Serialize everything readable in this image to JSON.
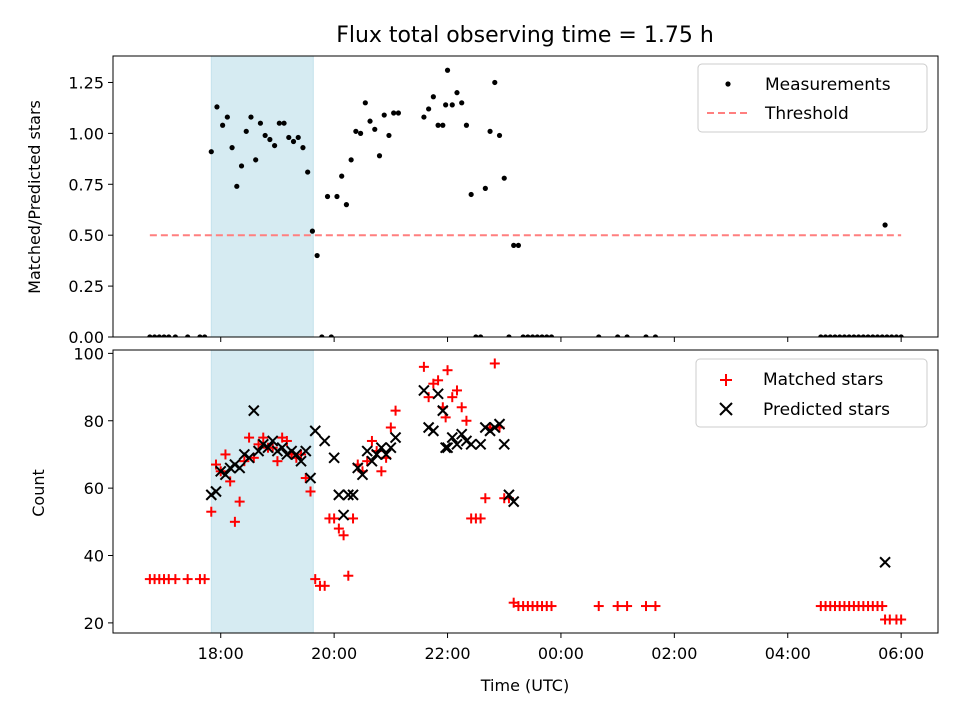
{
  "chart_data": [
    {
      "type": "scatter",
      "title": "Flux total observing time = 1.75 h",
      "xlabel": "",
      "ylabel": "Matched/Predicted stars",
      "xlim": [
        "16:06",
        "06:39"
      ],
      "ylim": [
        0,
        1.38
      ],
      "yticks": [
        "0.00",
        "0.25",
        "0.50",
        "0.75",
        "1.00",
        "1.25"
      ],
      "grid": false,
      "legend_position": "top-right",
      "shaded_span": [
        "17:50",
        "19:38"
      ],
      "threshold": {
        "name": "Threshold",
        "value": 0.5,
        "x_range": [
          "16:45",
          "06:00"
        ],
        "color": "#ff7f7f"
      },
      "series": [
        {
          "name": "Measurements",
          "color": "#000000",
          "points": [
            [
              "16:45",
              0
            ],
            [
              "16:50",
              0
            ],
            [
              "16:55",
              0
            ],
            [
              "17:00",
              0
            ],
            [
              "17:05",
              0
            ],
            [
              "17:12",
              0
            ],
            [
              "17:25",
              0
            ],
            [
              "17:38",
              0
            ],
            [
              "17:43",
              0
            ],
            [
              "17:50",
              0.91
            ],
            [
              "17:56",
              1.13
            ],
            [
              "18:02",
              1.04
            ],
            [
              "18:07",
              1.08
            ],
            [
              "18:12",
              0.93
            ],
            [
              "18:17",
              0.74
            ],
            [
              "18:22",
              0.84
            ],
            [
              "18:27",
              1.01
            ],
            [
              "18:32",
              1.08
            ],
            [
              "18:37",
              0.87
            ],
            [
              "18:42",
              1.05
            ],
            [
              "18:47",
              0.99
            ],
            [
              "18:52",
              0.97
            ],
            [
              "18:57",
              0.94
            ],
            [
              "19:02",
              1.05
            ],
            [
              "19:07",
              1.05
            ],
            [
              "19:12",
              0.98
            ],
            [
              "19:17",
              0.96
            ],
            [
              "19:22",
              0.98
            ],
            [
              "19:27",
              0.93
            ],
            [
              "19:32",
              0.81
            ],
            [
              "19:37",
              0.52
            ],
            [
              "19:42",
              0.4
            ],
            [
              "19:47",
              0
            ],
            [
              "19:57",
              0
            ],
            [
              "19:53",
              0.69
            ],
            [
              "20:03",
              0.69
            ],
            [
              "20:08",
              0.79
            ],
            [
              "20:13",
              0.65
            ],
            [
              "20:18",
              0.87
            ],
            [
              "20:23",
              1.01
            ],
            [
              "20:28",
              1.0
            ],
            [
              "20:33",
              1.15
            ],
            [
              "20:38",
              1.06
            ],
            [
              "20:43",
              1.02
            ],
            [
              "20:48",
              0.89
            ],
            [
              "20:53",
              1.09
            ],
            [
              "20:58",
              0.99
            ],
            [
              "21:03",
              1.1
            ],
            [
              "21:08",
              1.1
            ],
            [
              "21:35",
              1.08
            ],
            [
              "21:40",
              1.12
            ],
            [
              "21:45",
              1.18
            ],
            [
              "21:50",
              1.04
            ],
            [
              "21:55",
              1.04
            ],
            [
              "21:58",
              1.14
            ],
            [
              "22:00",
              1.31
            ],
            [
              "22:05",
              1.14
            ],
            [
              "22:10",
              1.2
            ],
            [
              "22:15",
              1.15
            ],
            [
              "22:20",
              1.04
            ],
            [
              "22:25",
              0.7
            ],
            [
              "22:30",
              0
            ],
            [
              "22:35",
              0
            ],
            [
              "22:40",
              0.73
            ],
            [
              "22:45",
              1.01
            ],
            [
              "22:50",
              1.25
            ],
            [
              "22:55",
              0.99
            ],
            [
              "23:00",
              0.78
            ],
            [
              "23:05",
              0
            ],
            [
              "23:10",
              0.45
            ],
            [
              "23:15",
              0.45
            ],
            [
              "23:20",
              0
            ],
            [
              "23:25",
              0
            ],
            [
              "23:30",
              0
            ],
            [
              "23:35",
              0
            ],
            [
              "23:40",
              0
            ],
            [
              "23:45",
              0
            ],
            [
              "23:50",
              0
            ],
            [
              "00:40",
              0
            ],
            [
              "01:00",
              0
            ],
            [
              "01:10",
              0
            ],
            [
              "01:30",
              0
            ],
            [
              "01:40",
              0
            ],
            [
              "04:35",
              0
            ],
            [
              "04:40",
              0
            ],
            [
              "04:45",
              0
            ],
            [
              "04:50",
              0
            ],
            [
              "04:55",
              0
            ],
            [
              "05:00",
              0
            ],
            [
              "05:05",
              0
            ],
            [
              "05:10",
              0
            ],
            [
              "05:15",
              0
            ],
            [
              "05:20",
              0
            ],
            [
              "05:25",
              0
            ],
            [
              "05:30",
              0
            ],
            [
              "05:35",
              0
            ],
            [
              "05:40",
              0
            ],
            [
              "05:43",
              0.55
            ],
            [
              "05:45",
              0
            ],
            [
              "05:50",
              0
            ],
            [
              "05:55",
              0
            ],
            [
              "06:00",
              0
            ]
          ]
        }
      ]
    },
    {
      "type": "scatter",
      "title": "",
      "xlabel": "Time (UTC)",
      "ylabel": "Count",
      "xlim": [
        "16:06",
        "06:39"
      ],
      "ylim": [
        17,
        101
      ],
      "yticks": [
        "20",
        "40",
        "60",
        "80",
        "100"
      ],
      "xticks": [
        "18:00",
        "20:00",
        "22:00",
        "00:00",
        "02:00",
        "04:00",
        "06:00"
      ],
      "grid": false,
      "legend_position": "top-right",
      "shaded_span": [
        "17:50",
        "19:38"
      ],
      "series": [
        {
          "name": "Matched stars",
          "marker": "plus",
          "color": "#ff0000",
          "points": [
            [
              "16:45",
              33
            ],
            [
              "16:50",
              33
            ],
            [
              "16:55",
              33
            ],
            [
              "17:00",
              33
            ],
            [
              "17:05",
              33
            ],
            [
              "17:12",
              33
            ],
            [
              "17:25",
              33
            ],
            [
              "17:38",
              33
            ],
            [
              "17:43",
              33
            ],
            [
              "17:50",
              53
            ],
            [
              "17:55",
              67
            ],
            [
              "18:00",
              65
            ],
            [
              "18:05",
              70
            ],
            [
              "18:10",
              62
            ],
            [
              "18:15",
              50
            ],
            [
              "18:20",
              56
            ],
            [
              "18:25",
              68
            ],
            [
              "18:30",
              75
            ],
            [
              "18:35",
              69
            ],
            [
              "18:40",
              73
            ],
            [
              "18:45",
              75
            ],
            [
              "18:50",
              72
            ],
            [
              "18:55",
              72
            ],
            [
              "19:00",
              68
            ],
            [
              "19:05",
              75
            ],
            [
              "19:10",
              74
            ],
            [
              "19:15",
              70
            ],
            [
              "19:20",
              69
            ],
            [
              "19:25",
              70
            ],
            [
              "19:30",
              63
            ],
            [
              "19:35",
              59
            ],
            [
              "19:40",
              33
            ],
            [
              "19:45",
              31
            ],
            [
              "19:50",
              31
            ],
            [
              "19:55",
              51
            ],
            [
              "20:00",
              51
            ],
            [
              "20:05",
              48
            ],
            [
              "20:10",
              46
            ],
            [
              "20:15",
              34
            ],
            [
              "20:20",
              51
            ],
            [
              "20:25",
              67
            ],
            [
              "20:30",
              65
            ],
            [
              "20:35",
              68
            ],
            [
              "20:40",
              74
            ],
            [
              "20:45",
              71
            ],
            [
              "20:50",
              65
            ],
            [
              "20:55",
              69
            ],
            [
              "21:00",
              78
            ],
            [
              "21:05",
              83
            ],
            [
              "21:35",
              96
            ],
            [
              "21:40",
              87
            ],
            [
              "21:45",
              91
            ],
            [
              "21:50",
              92
            ],
            [
              "21:55",
              84
            ],
            [
              "21:58",
              81
            ],
            [
              "22:00",
              95
            ],
            [
              "22:05",
              87
            ],
            [
              "22:10",
              89
            ],
            [
              "22:15",
              84
            ],
            [
              "22:20",
              80
            ],
            [
              "22:25",
              51
            ],
            [
              "22:30",
              51
            ],
            [
              "22:35",
              51
            ],
            [
              "22:40",
              57
            ],
            [
              "22:45",
              78
            ],
            [
              "22:50",
              97
            ],
            [
              "22:55",
              78
            ],
            [
              "23:00",
              57
            ],
            [
              "23:05",
              57
            ],
            [
              "23:10",
              26
            ],
            [
              "23:15",
              25
            ],
            [
              "23:20",
              25
            ],
            [
              "23:25",
              25
            ],
            [
              "23:30",
              25
            ],
            [
              "23:35",
              25
            ],
            [
              "23:40",
              25
            ],
            [
              "23:45",
              25
            ],
            [
              "23:50",
              25
            ],
            [
              "00:40",
              25
            ],
            [
              "01:00",
              25
            ],
            [
              "01:10",
              25
            ],
            [
              "01:30",
              25
            ],
            [
              "01:40",
              25
            ],
            [
              "04:35",
              25
            ],
            [
              "04:40",
              25
            ],
            [
              "04:45",
              25
            ],
            [
              "04:50",
              25
            ],
            [
              "04:55",
              25
            ],
            [
              "05:00",
              25
            ],
            [
              "05:05",
              25
            ],
            [
              "05:10",
              25
            ],
            [
              "05:15",
              25
            ],
            [
              "05:20",
              25
            ],
            [
              "05:25",
              25
            ],
            [
              "05:30",
              25
            ],
            [
              "05:35",
              25
            ],
            [
              "05:40",
              25
            ],
            [
              "05:43",
              21
            ],
            [
              "05:48",
              21
            ],
            [
              "05:55",
              21
            ],
            [
              "06:00",
              21
            ]
          ]
        },
        {
          "name": "Predicted stars",
          "marker": "x",
          "color": "#000000",
          "points": [
            [
              "17:50",
              58
            ],
            [
              "17:55",
              59
            ],
            [
              "18:00",
              65
            ],
            [
              "18:05",
              64
            ],
            [
              "18:10",
              66
            ],
            [
              "18:15",
              67
            ],
            [
              "18:20",
              66
            ],
            [
              "18:25",
              70
            ],
            [
              "18:30",
              69
            ],
            [
              "18:35",
              83
            ],
            [
              "18:40",
              71
            ],
            [
              "18:45",
              73
            ],
            [
              "18:50",
              72
            ],
            [
              "18:55",
              74
            ],
            [
              "19:00",
              71
            ],
            [
              "19:05",
              72
            ],
            [
              "19:10",
              70
            ],
            [
              "19:15",
              71
            ],
            [
              "19:20",
              70
            ],
            [
              "19:25",
              68
            ],
            [
              "19:30",
              71
            ],
            [
              "19:35",
              63
            ],
            [
              "19:40",
              77
            ],
            [
              "19:50",
              74
            ],
            [
              "20:00",
              69
            ],
            [
              "20:05",
              58
            ],
            [
              "20:10",
              52
            ],
            [
              "20:15",
              58
            ],
            [
              "20:20",
              58
            ],
            [
              "20:25",
              66
            ],
            [
              "20:30",
              64
            ],
            [
              "20:35",
              71
            ],
            [
              "20:40",
              68
            ],
            [
              "20:45",
              70
            ],
            [
              "20:50",
              72
            ],
            [
              "20:55",
              70
            ],
            [
              "21:00",
              72
            ],
            [
              "21:05",
              75
            ],
            [
              "21:35",
              89
            ],
            [
              "21:40",
              78
            ],
            [
              "21:45",
              77
            ],
            [
              "21:50",
              88
            ],
            [
              "21:55",
              83
            ],
            [
              "21:58",
              72
            ],
            [
              "22:00",
              72
            ],
            [
              "22:05",
              75
            ],
            [
              "22:10",
              73
            ],
            [
              "22:15",
              76
            ],
            [
              "22:20",
              74
            ],
            [
              "22:25",
              73
            ],
            [
              "22:35",
              73
            ],
            [
              "22:40",
              78
            ],
            [
              "22:45",
              77
            ],
            [
              "22:50",
              78
            ],
            [
              "22:55",
              79
            ],
            [
              "23:00",
              73
            ],
            [
              "23:05",
              58
            ],
            [
              "23:10",
              56
            ],
            [
              "05:43",
              38
            ]
          ]
        }
      ]
    }
  ]
}
